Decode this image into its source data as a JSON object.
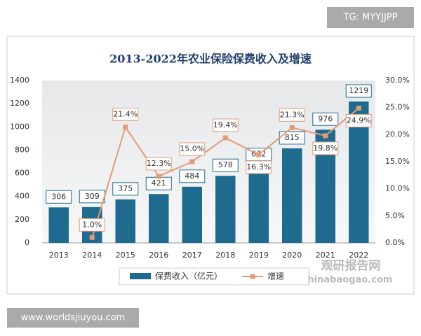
{
  "chart_data": {
    "type": "bar_line",
    "title": "2013-2022年农业保险保费收入及增速",
    "categories": [
      "2013",
      "2014",
      "2015",
      "2016",
      "2017",
      "2018",
      "2019",
      "2020",
      "2021",
      "2022"
    ],
    "series": [
      {
        "name": "保费收入（亿元）",
        "color": "#1f6b8f",
        "type": "bar",
        "values": [
          306,
          309,
          375,
          421,
          484,
          578,
          672,
          815,
          976,
          1219
        ]
      },
      {
        "name": "增速",
        "color": "#e39a76",
        "type": "line",
        "axis": "y2",
        "values": [
          null,
          1.0,
          21.4,
          12.3,
          15.0,
          19.4,
          16.3,
          21.3,
          19.8,
          24.9
        ],
        "value_labels": [
          null,
          "1.0%",
          "21.4%",
          "12.3%",
          "15.0%",
          "19.4%",
          "16.3%",
          "21.3%",
          "19.8%",
          "24.9%"
        ]
      }
    ],
    "ylim": [
      0,
      1400
    ],
    "yticks": [
      0,
      200,
      400,
      600,
      800,
      1000,
      1200,
      1400
    ],
    "y2lim": [
      0,
      30
    ],
    "y2ticks": [
      {
        "value": 0,
        "label": "0.0%"
      },
      {
        "value": 5,
        "label": "5.0%"
      },
      {
        "value": 10,
        "label": "10.0%"
      },
      {
        "value": 15,
        "label": "15.0%"
      },
      {
        "value": 20,
        "label": "20.0%"
      },
      {
        "value": 25,
        "label": "25.0%"
      },
      {
        "value": 30,
        "label": "30.0%"
      }
    ],
    "legend": "bottom"
  },
  "watermarks": [
    "TG: MYYJJPP",
    "www.worldsjiuyou.com",
    "观研报告网",
    "chinabaogao.com"
  ]
}
